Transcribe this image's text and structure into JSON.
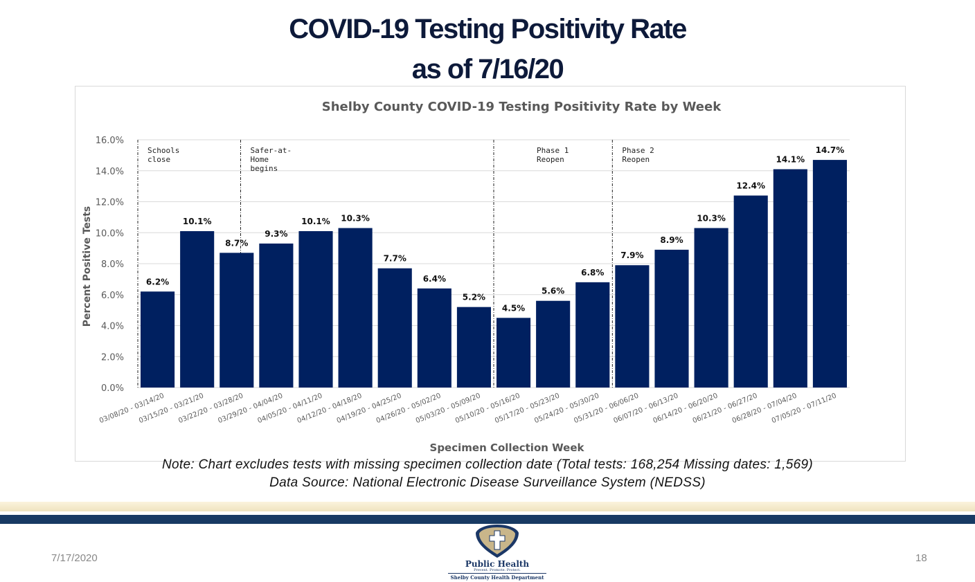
{
  "slide": {
    "title_line1": "COVID-19 Testing Positivity Rate",
    "title_line2": "as of 7/16/20",
    "note": "Note: Chart excludes tests with missing specimen collection date (Total tests: 168,254 Missing dates: 1,569)",
    "source": "Data Source: National Electronic Disease Surveillance System (NEDSS)",
    "footer_date": "7/17/2020",
    "page_number": "18",
    "logo": {
      "name": "Public Health",
      "tagline": "Prevent. Promote. Protect.",
      "org": "Shelby County Health Department"
    }
  },
  "chart_data": {
    "type": "bar",
    "title": "Shelby County COVID-19 Testing Positivity Rate by Week",
    "xlabel": "Specimen Collection Week",
    "ylabel": "Percent Positive Tests",
    "ylim": [
      0,
      16
    ],
    "yticks": [
      "0.0%",
      "2.0%",
      "4.0%",
      "6.0%",
      "8.0%",
      "10.0%",
      "12.0%",
      "14.0%",
      "16.0%"
    ],
    "grid": true,
    "bar_color": "#002060",
    "categories": [
      "03/08/20 - 03/14/20",
      "03/15/20 - 03/21/20",
      "03/22/20 - 03/28/20",
      "03/29/20 - 04/04/20",
      "04/05/20 - 04/11/20",
      "04/12/20 - 04/18/20",
      "04/19/20 - 04/25/20",
      "04/26/20 - 05/02/20",
      "05/03/20 - 05/09/20",
      "05/10/20 - 05/16/20",
      "05/17/20 - 05/23/20",
      "05/24/20 - 05/30/20",
      "05/31/20 - 06/06/20",
      "06/07/20 - 06/13/20",
      "06/14/20 - 06/20/20",
      "06/21/20 - 06/27/20",
      "06/28/20 - 07/04/20",
      "07/05/20 - 07/11/20"
    ],
    "values": [
      6.2,
      10.1,
      8.7,
      9.3,
      10.1,
      10.3,
      7.7,
      6.4,
      5.2,
      4.5,
      5.6,
      6.8,
      7.9,
      8.9,
      10.3,
      12.4,
      14.1,
      14.7
    ],
    "labels": [
      "6.2%",
      "10.1%",
      "8.7%",
      "9.3%",
      "10.1%",
      "10.3%",
      "7.7%",
      "6.4%",
      "5.2%",
      "4.5%",
      "5.6%",
      "6.8%",
      "7.9%",
      "8.9%",
      "10.3%",
      "12.4%",
      "14.1%",
      "14.7%"
    ],
    "annotations": [
      {
        "at_category_index": 0,
        "position": "before",
        "lines": [
          "Schools",
          "close"
        ]
      },
      {
        "at_category_index": 2,
        "position": "middle",
        "lines": [
          "Safer-at-",
          "Home",
          "begins"
        ]
      },
      {
        "at_category_index": 8,
        "position": "after",
        "lines": [
          "Phase 1",
          "Reopen"
        ]
      },
      {
        "at_category_index": 12,
        "position": "before",
        "lines": [
          "Phase 2",
          "Reopen"
        ]
      }
    ]
  }
}
